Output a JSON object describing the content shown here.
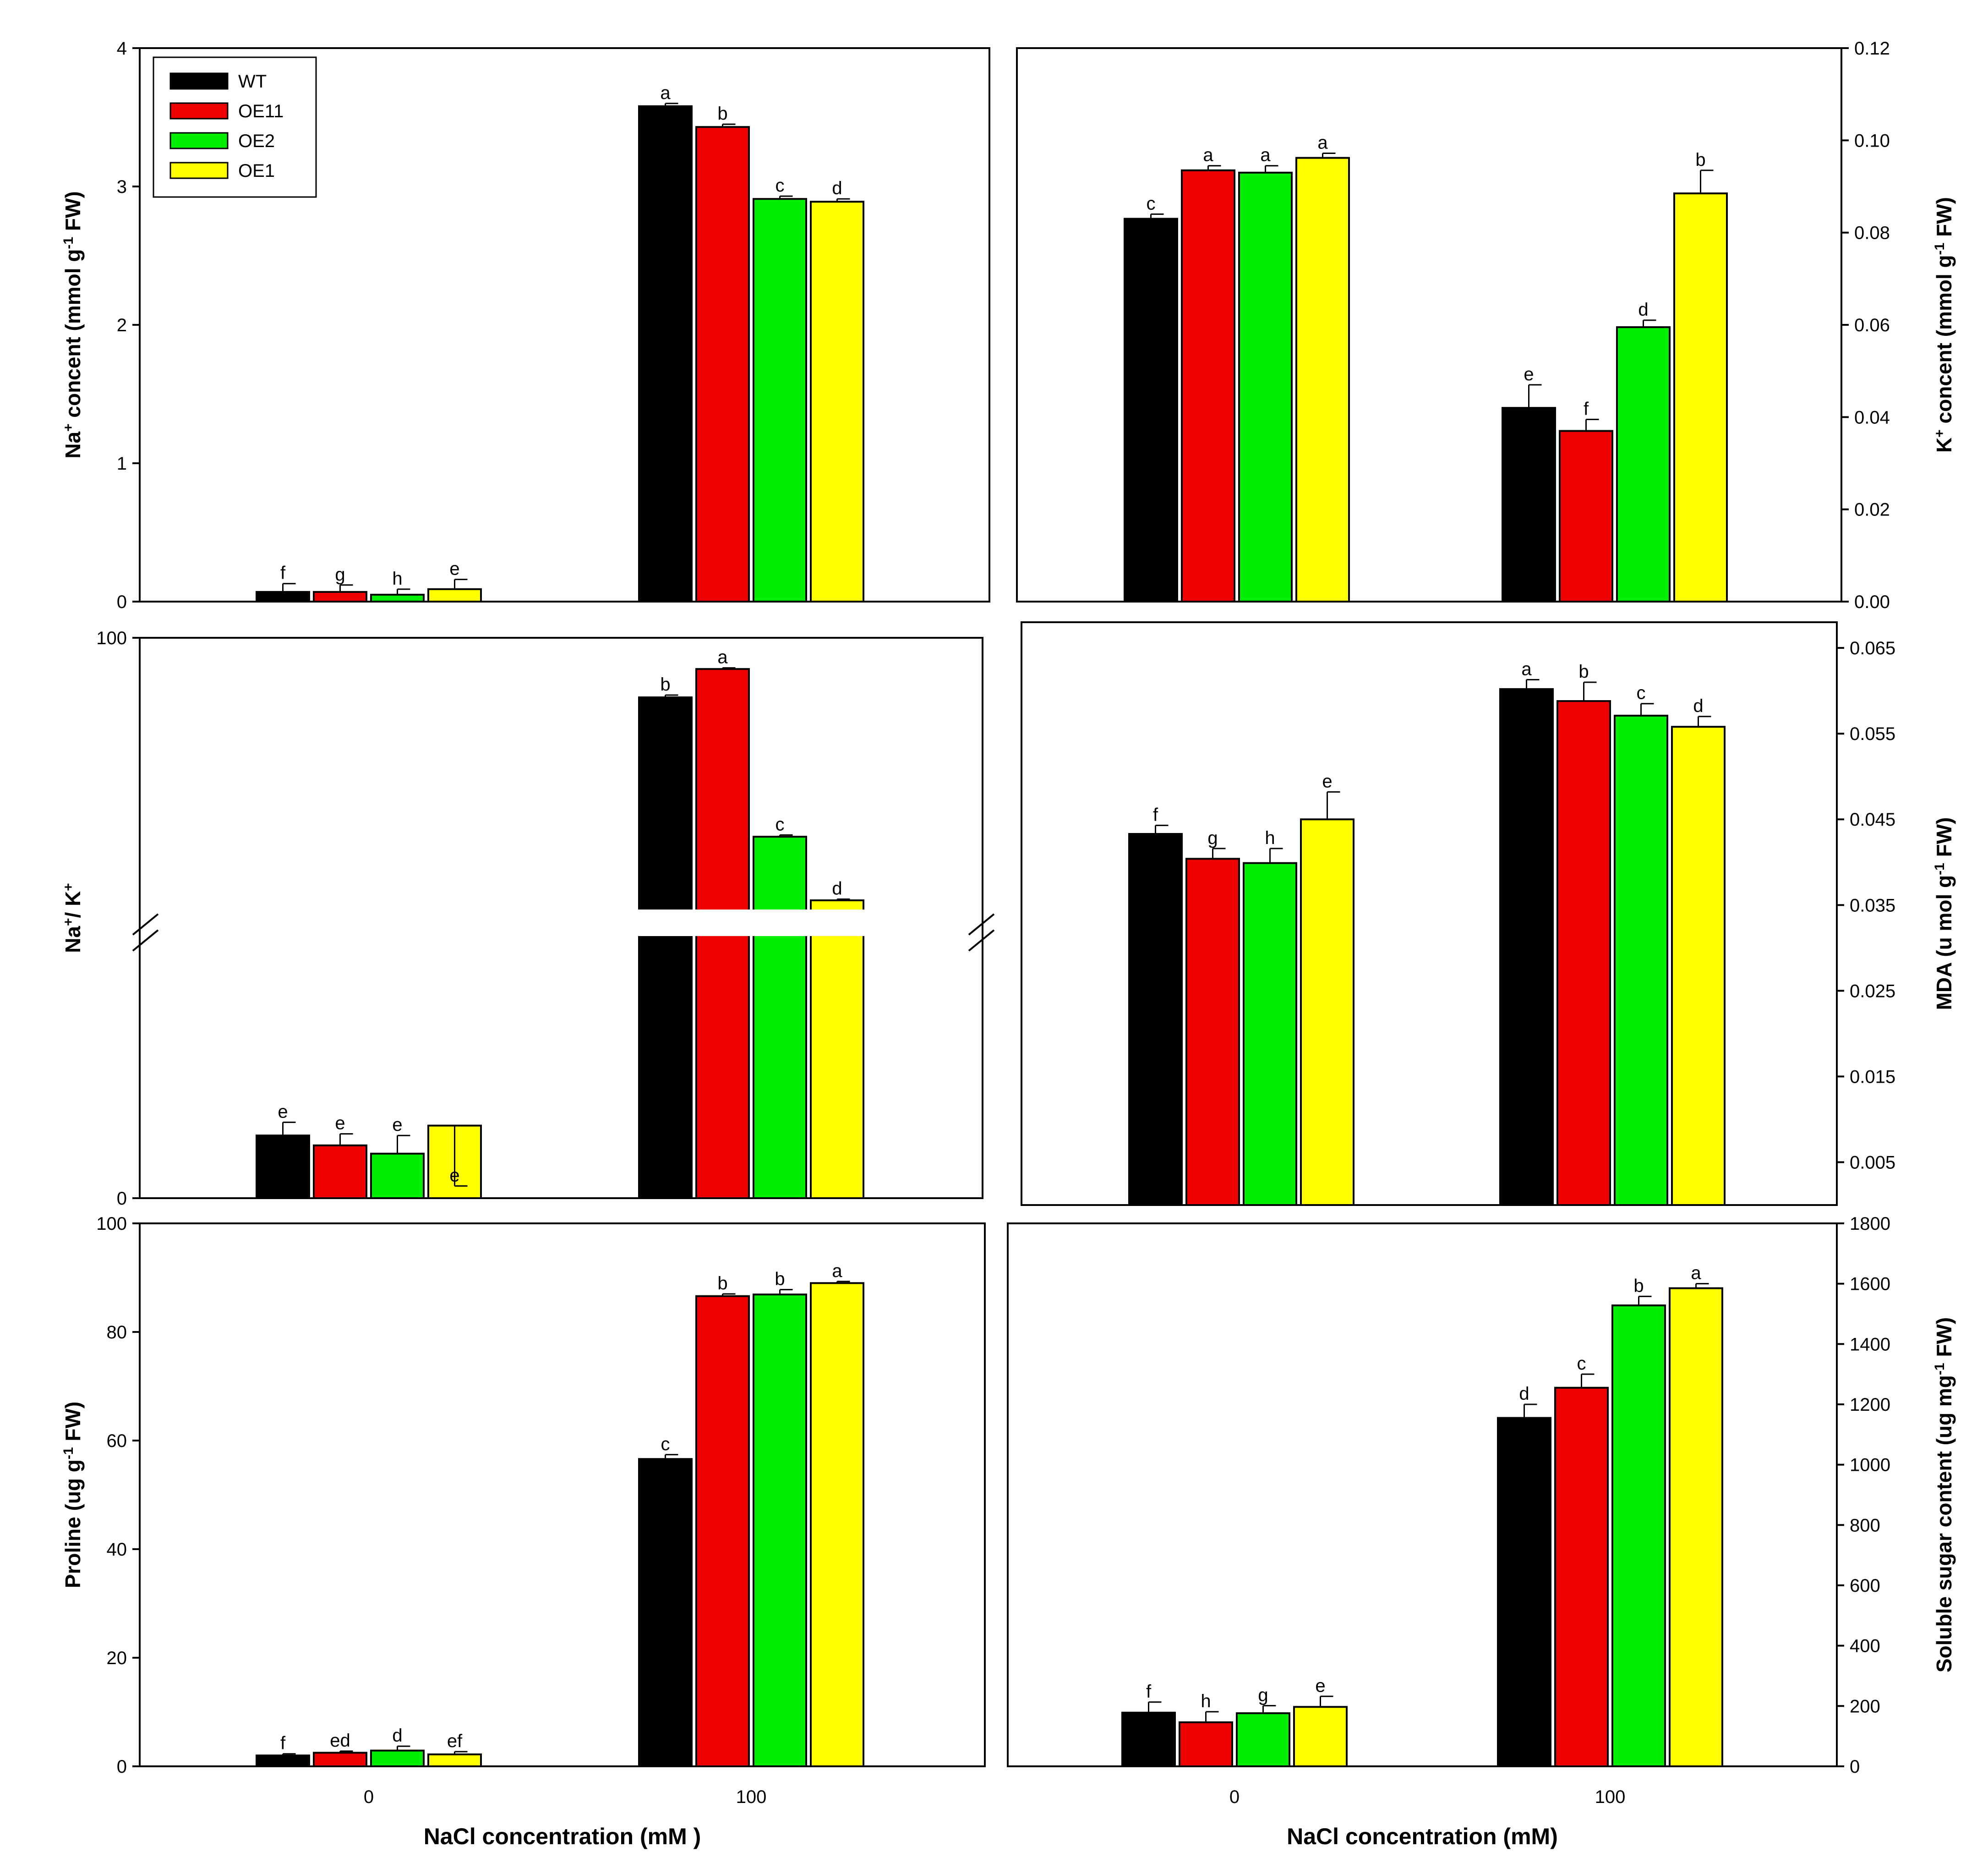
{
  "chart_data": [
    {
      "id": "na",
      "type": "bar",
      "categories": [
        "0",
        "100"
      ],
      "ylabel": "Na+ concent (mmol g-1 FW)",
      "ylabel_parts": [
        [
          "Na",
          "n"
        ],
        [
          "+",
          "sup"
        ],
        [
          " concent (mmol g",
          "n"
        ],
        [
          "-1",
          "sup"
        ],
        [
          " FW)",
          "n"
        ]
      ],
      "xlabel": "",
      "ylim": [
        0,
        4
      ],
      "yticks": [
        "0",
        "1",
        "2",
        "3",
        "4"
      ],
      "series": [
        {
          "name": "WT",
          "values": [
            0.07,
            3.58
          ],
          "err": [
            0.06,
            0.02
          ],
          "sig": [
            "f",
            "a"
          ]
        },
        {
          "name": "OE11",
          "values": [
            0.07,
            3.43
          ],
          "err": [
            0.05,
            0.02
          ],
          "sig": [
            "g",
            "b"
          ]
        },
        {
          "name": "OE2",
          "values": [
            0.05,
            2.91
          ],
          "err": [
            0.04,
            0.02
          ],
          "sig": [
            "h",
            "c"
          ]
        },
        {
          "name": "OE1",
          "values": [
            0.09,
            2.89
          ],
          "err": [
            0.07,
            0.02
          ],
          "sig": [
            "e",
            "d"
          ]
        }
      ],
      "legend": [
        "WT",
        "OE11",
        "OE2",
        "OE1"
      ],
      "legend_position": "top-left"
    },
    {
      "id": "k",
      "type": "bar",
      "categories": [
        "0",
        "100"
      ],
      "ylabel": "K+ concent (mmol g-1 FW)",
      "ylabel_parts": [
        [
          "K",
          "n"
        ],
        [
          "+",
          "sup"
        ],
        [
          " concent (mmol g",
          "n"
        ],
        [
          "-1",
          "sup"
        ],
        [
          " FW)",
          "n"
        ]
      ],
      "xlabel": "",
      "ylim": [
        0,
        0.12
      ],
      "yticks": [
        "0.00",
        "0.02",
        "0.04",
        "0.06",
        "0.08",
        "0.10",
        "0.12"
      ],
      "series": [
        {
          "name": "WT",
          "values": [
            0.083,
            0.042
          ],
          "err": [
            0.001,
            0.005
          ],
          "sig": [
            "c",
            "e"
          ]
        },
        {
          "name": "OE11",
          "values": [
            0.0935,
            0.037
          ],
          "err": [
            0.001,
            0.0025
          ],
          "sig": [
            "a",
            "f"
          ]
        },
        {
          "name": "OE2",
          "values": [
            0.093,
            0.0595
          ],
          "err": [
            0.0015,
            0.0015
          ],
          "sig": [
            "a",
            "d"
          ]
        },
        {
          "name": "OE1",
          "values": [
            0.0962,
            0.0885
          ],
          "err": [
            0.001,
            0.005
          ],
          "sig": [
            "a",
            "b"
          ]
        }
      ]
    },
    {
      "id": "ratio",
      "type": "bar",
      "categories": [
        "0",
        "100"
      ],
      "ylabel": "Na+/ K+",
      "ylabel_parts": [
        [
          "Na",
          "n"
        ],
        [
          "+",
          "sup"
        ],
        [
          "/ K",
          "n"
        ],
        [
          "+",
          "sup"
        ]
      ],
      "xlabel": "",
      "ylim": [
        0,
        100
      ],
      "yticks": [
        "0",
        "100"
      ],
      "axis_break": true,
      "series": [
        {
          "name": "WT",
          "values": [
            3.8,
            89.7
          ],
          "err": [
            0.8,
            0.4
          ],
          "sig": [
            "e",
            "b"
          ]
        },
        {
          "name": "OE11",
          "values": [
            3.2,
            94.6
          ],
          "err": [
            0.7,
            0.2
          ],
          "sig": [
            "e",
            "a"
          ]
        },
        {
          "name": "OE2",
          "values": [
            2.7,
            65.6
          ],
          "err": [
            1.1,
            0.3
          ],
          "sig": [
            "e",
            "c"
          ]
        },
        {
          "name": "OE1",
          "values": [
            4.4,
            54.6
          ],
          "err": [
            0.8,
            0.2
          ],
          "sig": [
            "e",
            "d"
          ]
        }
      ]
    },
    {
      "id": "mda",
      "type": "bar",
      "categories": [
        "0",
        "100"
      ],
      "ylabel": "MDA (u mol g-1 FW)",
      "ylabel_parts": [
        [
          "MDA (u mol g",
          "n"
        ],
        [
          "-1",
          "sup"
        ],
        [
          " FW)",
          "n"
        ]
      ],
      "xlabel": "",
      "ylim": [
        0,
        0.068
      ],
      "yticks": [
        "0.005",
        "0.015",
        "0.025",
        "0.035",
        "0.045",
        "0.055",
        "0.065"
      ],
      "ytick_values": [
        0.005,
        0.015,
        0.025,
        0.035,
        0.045,
        0.055,
        0.065
      ],
      "series": [
        {
          "name": "WT",
          "values": [
            0.0433,
            0.0602
          ],
          "err": [
            0.001,
            0.0011
          ],
          "sig": [
            "f",
            "a"
          ]
        },
        {
          "name": "OE11",
          "values": [
            0.0404,
            0.0588
          ],
          "err": [
            0.0012,
            0.0022
          ],
          "sig": [
            "g",
            "b"
          ]
        },
        {
          "name": "OE2",
          "values": [
            0.0399,
            0.0571
          ],
          "err": [
            0.0017,
            0.0014
          ],
          "sig": [
            "h",
            "c"
          ]
        },
        {
          "name": "OE1",
          "values": [
            0.045,
            0.0558
          ],
          "err": [
            0.0032,
            0.0012
          ],
          "sig": [
            "e",
            "d"
          ]
        }
      ]
    },
    {
      "id": "proline",
      "type": "bar",
      "categories": [
        "0",
        "100"
      ],
      "ylabel": "Proline (ug g-1 FW)",
      "ylabel_parts": [
        [
          "Proline (ug g",
          "n"
        ],
        [
          "-1",
          "sup"
        ],
        [
          " FW)",
          "n"
        ]
      ],
      "xlabel": "NaCl concentration (mM )",
      "ylim": [
        0,
        100
      ],
      "yticks": [
        "0",
        "20",
        "40",
        "60",
        "80",
        "100"
      ],
      "series": [
        {
          "name": "WT",
          "values": [
            2.0,
            56.6
          ],
          "err": [
            0.3,
            0.8
          ],
          "sig": [
            "f",
            "c"
          ]
        },
        {
          "name": "OE11",
          "values": [
            2.5,
            86.6
          ],
          "err": [
            0.3,
            0.4
          ],
          "sig": [
            "ed",
            "b"
          ]
        },
        {
          "name": "OE2",
          "values": [
            2.9,
            86.9
          ],
          "err": [
            0.8,
            0.9
          ],
          "sig": [
            "d",
            "b"
          ]
        },
        {
          "name": "OE1",
          "values": [
            2.2,
            89.0
          ],
          "err": [
            0.5,
            0.3
          ],
          "sig": [
            "ef",
            "a"
          ]
        }
      ]
    },
    {
      "id": "sugar",
      "type": "bar",
      "categories": [
        "0",
        "100"
      ],
      "ylabel": "Soluble sugar content (ug mg-1 FW)",
      "ylabel_parts": [
        [
          "Soluble sugar content (ug mg",
          "n"
        ],
        [
          "-1",
          "sup"
        ],
        [
          " FW)",
          "n"
        ]
      ],
      "xlabel": "NaCl concentration (mM)",
      "ylim": [
        0,
        1800
      ],
      "yticks": [
        "0",
        "200",
        "400",
        "600",
        "800",
        "1000",
        "1200",
        "1400",
        "1600",
        "1800"
      ],
      "series": [
        {
          "name": "WT",
          "values": [
            178,
            1155
          ],
          "err": [
            35,
            45
          ],
          "sig": [
            "f",
            "d"
          ]
        },
        {
          "name": "OE11",
          "values": [
            146,
            1255
          ],
          "err": [
            35,
            45
          ],
          "sig": [
            "h",
            "c"
          ]
        },
        {
          "name": "OE2",
          "values": [
            176,
            1528
          ],
          "err": [
            25,
            30
          ],
          "sig": [
            "g",
            "b"
          ]
        },
        {
          "name": "OE1",
          "values": [
            197,
            1585
          ],
          "err": [
            35,
            15
          ],
          "sig": [
            "e",
            "a"
          ]
        }
      ]
    }
  ],
  "colors": {
    "WT": "#000000",
    "OE11": "#ee0000",
    "OE2": "#00ee00",
    "OE1": "#ffff00"
  }
}
